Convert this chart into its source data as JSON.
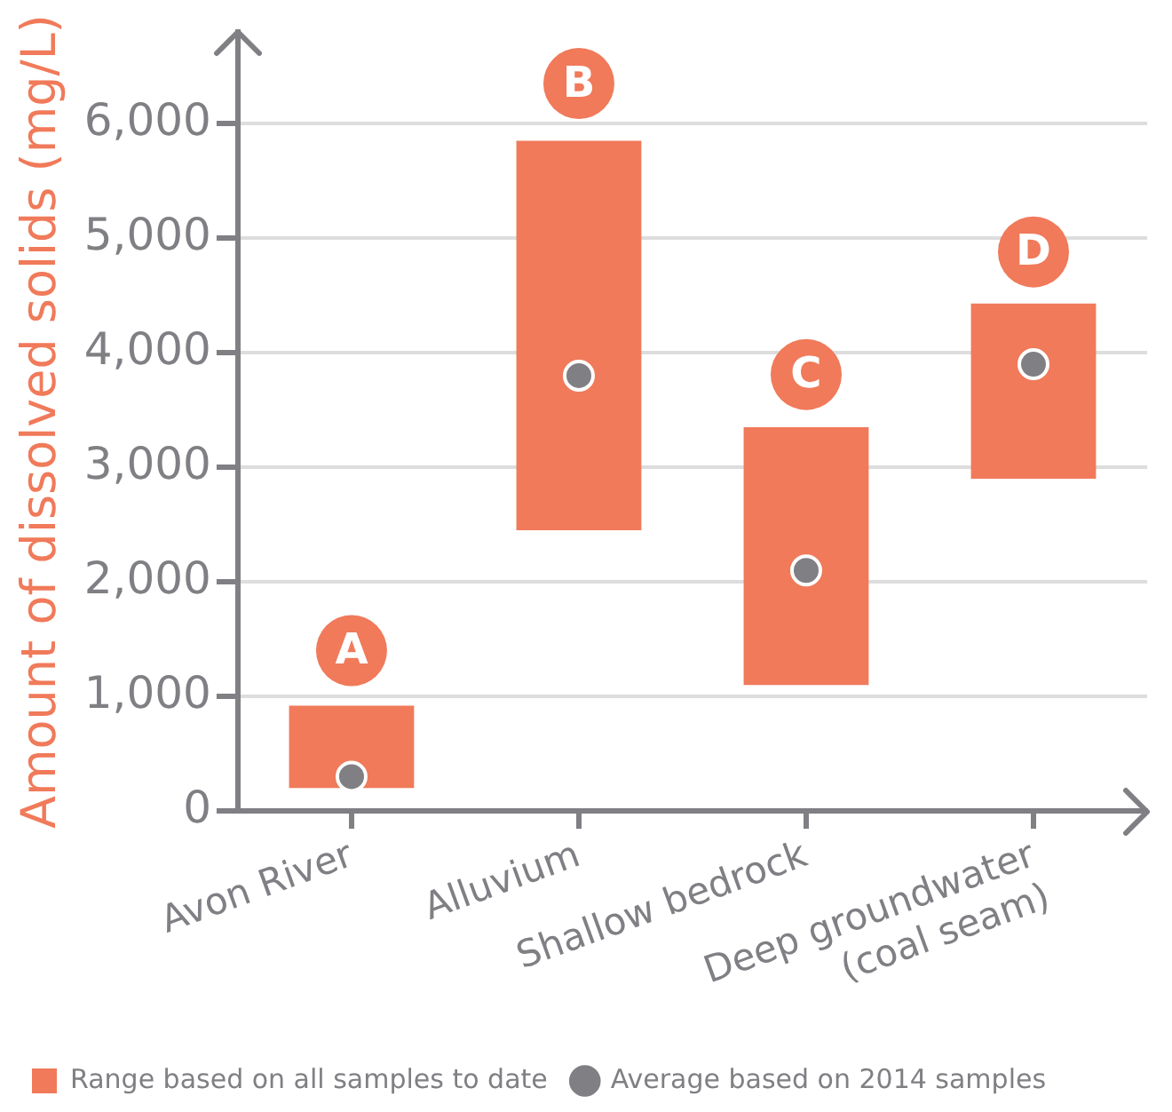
{
  "chart_data": {
    "type": "bar",
    "ylabel": "Amount of dissolved solids (mg/L)",
    "categories": [
      "Avon River",
      "Alluvium",
      "Shallow bedrock",
      "Deep groundwater\n(coal seam)"
    ],
    "series": [
      {
        "name": "Range based on all samples to date",
        "color": "#f07a5a",
        "base": [
          200,
          2450,
          1100,
          2900
        ],
        "values": [
          720,
          3400,
          2250,
          1530
        ]
      },
      {
        "name": "Average based on 2014 samples",
        "type": "scatter",
        "color": "#7f7f84",
        "marker": "circle",
        "x": [
          "Avon River",
          "Alluvium",
          "Shallow bedrock",
          "Deep groundwater\n(coal seam)"
        ],
        "values": [
          300,
          3800,
          2100,
          3900
        ]
      }
    ],
    "ylim": [
      0,
      6800
    ],
    "yticks": [
      {
        "value": 0,
        "label": "0"
      },
      {
        "value": 1000,
        "label": "1,000"
      },
      {
        "value": 2000,
        "label": "2,000"
      },
      {
        "value": 3000,
        "label": "3,000"
      },
      {
        "value": 4000,
        "label": "4,000"
      },
      {
        "value": 5000,
        "label": "5,000"
      },
      {
        "value": 6000,
        "label": "6,000"
      }
    ],
    "grid": "y",
    "legend": "bottom",
    "annotations": [
      {
        "text": "A",
        "x": "Avon River",
        "y": 1400
      },
      {
        "text": "B",
        "x": "Alluvium",
        "y": 6350
      },
      {
        "text": "C",
        "x": "Shallow bedrock",
        "y": 3810
      },
      {
        "text": "D",
        "x": "Deep groundwater\n(coal seam)",
        "y": 4880
      }
    ]
  }
}
